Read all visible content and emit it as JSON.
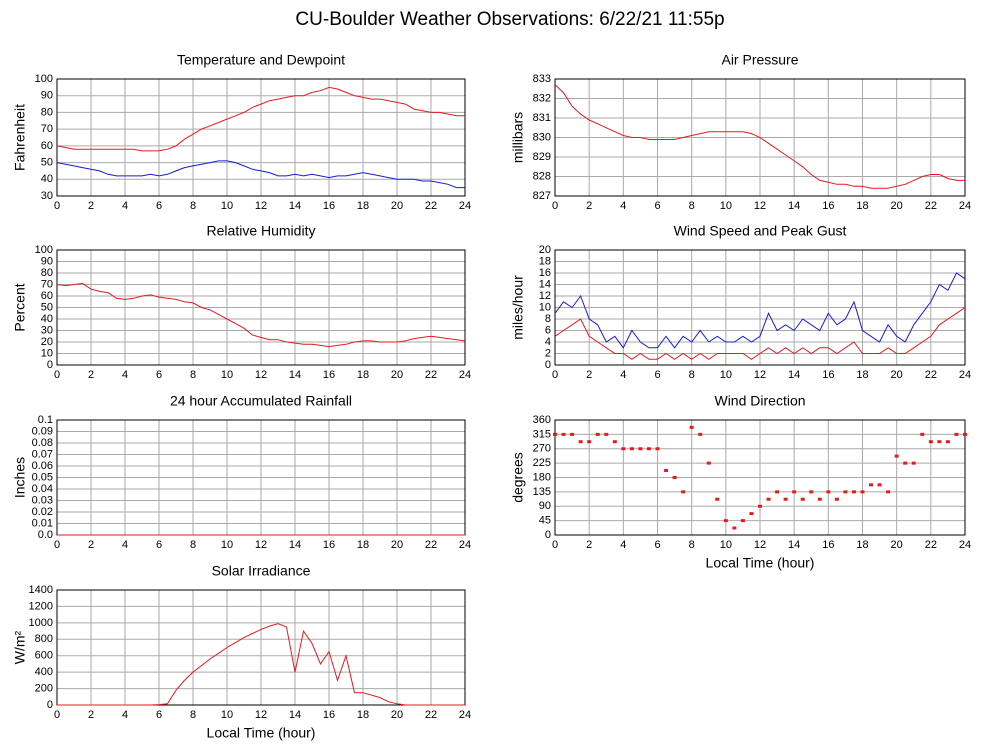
{
  "title": "CU-Boulder Weather Observations: 6/22/21 11:55p",
  "chart_data": [
    {
      "type": "line",
      "title": "Temperature and Dewpoint",
      "ylabel": "Fahrenheit",
      "x": [
        0,
        0.5,
        1,
        1.5,
        2,
        2.5,
        3,
        3.5,
        4,
        4.5,
        5,
        5.5,
        6,
        6.5,
        7,
        7.5,
        8,
        8.5,
        9,
        9.5,
        10,
        10.5,
        11,
        11.5,
        12,
        12.5,
        13,
        13.5,
        14,
        14.5,
        15,
        15.5,
        16,
        16.5,
        17,
        17.5,
        18,
        18.5,
        19,
        19.5,
        20,
        20.5,
        21,
        21.5,
        22,
        22.5,
        23,
        23.5,
        24
      ],
      "series": [
        {
          "color": "#e8191c",
          "values": [
            60,
            59,
            58,
            58,
            58,
            58,
            58,
            58,
            58,
            58,
            57,
            57,
            57,
            58,
            60,
            64,
            67,
            70,
            72,
            74,
            76,
            78,
            80,
            83,
            85,
            87,
            88,
            89,
            90,
            90,
            92,
            93,
            95,
            94,
            92,
            90,
            89,
            88,
            88,
            87,
            86,
            85,
            82,
            81,
            80,
            80,
            79,
            78,
            78
          ]
        },
        {
          "color": "#1a1adc",
          "values": [
            50,
            49,
            48,
            47,
            46,
            45,
            43,
            42,
            42,
            42,
            42,
            43,
            42,
            43,
            45,
            47,
            48,
            49,
            50,
            51,
            51,
            50,
            48,
            46,
            45,
            44,
            42,
            42,
            43,
            42,
            43,
            42,
            41,
            42,
            42,
            43,
            44,
            43,
            42,
            41,
            40,
            40,
            40,
            39,
            39,
            38,
            37,
            35,
            35
          ]
        }
      ],
      "xlim": [
        0,
        24
      ],
      "xticks": [
        0,
        2,
        4,
        6,
        8,
        10,
        12,
        14,
        16,
        18,
        20,
        22,
        24
      ],
      "ylim": [
        30,
        100
      ],
      "yticks": [
        30,
        40,
        50,
        60,
        70,
        80,
        90,
        100
      ],
      "grid": true
    },
    {
      "type": "line",
      "title": "Air Pressure",
      "ylabel": "millibars",
      "x": [
        0,
        0.5,
        1,
        1.5,
        2,
        2.5,
        3,
        3.5,
        4,
        4.5,
        5,
        5.5,
        6,
        6.5,
        7,
        7.5,
        8,
        8.5,
        9,
        9.5,
        10,
        10.5,
        11,
        11.5,
        12,
        12.5,
        13,
        13.5,
        14,
        14.5,
        15,
        15.5,
        16,
        16.5,
        17,
        17.5,
        18,
        18.5,
        19,
        19.5,
        20,
        20.5,
        21,
        21.5,
        22,
        22.5,
        23,
        23.5,
        24
      ],
      "series": [
        {
          "color": "#e8191c",
          "values": [
            832.7,
            832.3,
            831.6,
            831.2,
            830.9,
            830.7,
            830.5,
            830.3,
            830.1,
            830.0,
            830.0,
            829.9,
            829.9,
            829.9,
            829.9,
            830.0,
            830.1,
            830.2,
            830.3,
            830.3,
            830.3,
            830.3,
            830.3,
            830.2,
            830.0,
            829.7,
            829.4,
            829.1,
            828.8,
            828.5,
            828.1,
            827.8,
            827.7,
            827.6,
            827.6,
            827.5,
            827.5,
            827.4,
            827.4,
            827.4,
            827.5,
            827.6,
            827.8,
            828.0,
            828.1,
            828.1,
            827.9,
            827.8,
            827.8
          ]
        }
      ],
      "xlim": [
        0,
        24
      ],
      "xticks": [
        0,
        2,
        4,
        6,
        8,
        10,
        12,
        14,
        16,
        18,
        20,
        22,
        24
      ],
      "ylim": [
        827,
        833
      ],
      "yticks": [
        827,
        828,
        829,
        830,
        831,
        832,
        833
      ],
      "grid": true
    },
    {
      "type": "line",
      "title": "Relative Humidity",
      "ylabel": "Percent",
      "x": [
        0,
        0.5,
        1,
        1.5,
        2,
        2.5,
        3,
        3.5,
        4,
        4.5,
        5,
        5.5,
        6,
        6.5,
        7,
        7.5,
        8,
        8.5,
        9,
        9.5,
        10,
        10.5,
        11,
        11.5,
        12,
        12.5,
        13,
        13.5,
        14,
        14.5,
        15,
        15.5,
        16,
        16.5,
        17,
        17.5,
        18,
        18.5,
        19,
        19.5,
        20,
        20.5,
        21,
        21.5,
        22,
        22.5,
        23,
        23.5,
        24
      ],
      "series": [
        {
          "color": "#e8191c",
          "values": [
            70,
            69,
            70,
            71,
            66,
            64,
            63,
            58,
            57,
            58,
            60,
            61,
            59,
            58,
            57,
            55,
            54,
            50,
            48,
            44,
            40,
            36,
            32,
            26,
            24,
            22,
            22,
            20,
            19,
            18,
            18,
            17,
            16,
            17,
            18,
            20,
            21,
            21,
            20,
            20,
            20,
            21,
            23,
            24,
            25,
            24,
            23,
            22,
            21
          ]
        }
      ],
      "xlim": [
        0,
        24
      ],
      "xticks": [
        0,
        2,
        4,
        6,
        8,
        10,
        12,
        14,
        16,
        18,
        20,
        22,
        24
      ],
      "ylim": [
        0,
        100
      ],
      "yticks": [
        0,
        10,
        20,
        30,
        40,
        50,
        60,
        70,
        80,
        90,
        100
      ],
      "grid": true
    },
    {
      "type": "line",
      "title": "Wind Speed and Peak Gust",
      "ylabel": "miles/hour",
      "x": [
        0,
        0.5,
        1,
        1.5,
        2,
        2.5,
        3,
        3.5,
        4,
        4.5,
        5,
        5.5,
        6,
        6.5,
        7,
        7.5,
        8,
        8.5,
        9,
        9.5,
        10,
        10.5,
        11,
        11.5,
        12,
        12.5,
        13,
        13.5,
        14,
        14.5,
        15,
        15.5,
        16,
        16.5,
        17,
        17.5,
        18,
        18.5,
        19,
        19.5,
        20,
        20.5,
        21,
        21.5,
        22,
        22.5,
        23,
        23.5,
        24
      ],
      "series": [
        {
          "color": "#e8191c",
          "values": [
            5,
            6,
            7,
            8,
            5,
            4,
            3,
            2,
            2,
            1,
            2,
            1,
            1,
            2,
            1,
            2,
            1,
            2,
            1,
            2,
            2,
            2,
            2,
            1,
            2,
            3,
            2,
            3,
            2,
            3,
            2,
            3,
            3,
            2,
            3,
            4,
            2,
            2,
            2,
            3,
            2,
            2,
            3,
            4,
            5,
            7,
            8,
            9,
            10
          ]
        },
        {
          "color": "#1a1adc",
          "values": [
            9,
            11,
            10,
            12,
            8,
            7,
            4,
            5,
            3,
            6,
            4,
            3,
            3,
            5,
            3,
            5,
            4,
            6,
            4,
            5,
            4,
            4,
            5,
            4,
            5,
            9,
            6,
            7,
            6,
            8,
            7,
            6,
            9,
            7,
            8,
            11,
            6,
            5,
            4,
            7,
            5,
            4,
            7,
            9,
            11,
            14,
            13,
            16,
            15
          ]
        }
      ],
      "xlim": [
        0,
        24
      ],
      "xticks": [
        0,
        2,
        4,
        6,
        8,
        10,
        12,
        14,
        16,
        18,
        20,
        22,
        24
      ],
      "ylim": [
        0,
        20
      ],
      "yticks": [
        0,
        2,
        4,
        6,
        8,
        10,
        12,
        14,
        16,
        18,
        20
      ],
      "grid": true
    },
    {
      "type": "line",
      "title": "24 hour Accumulated Rainfall",
      "ylabel": "Inches",
      "x": [
        0,
        24
      ],
      "series": [
        {
          "color": "#e8191c",
          "values": [
            0,
            0
          ]
        }
      ],
      "xlim": [
        0,
        24
      ],
      "xticks": [
        0,
        2,
        4,
        6,
        8,
        10,
        12,
        14,
        16,
        18,
        20,
        22,
        24
      ],
      "ylim": [
        0,
        0.1
      ],
      "yticks": [
        {
          "value": 0,
          "label": "0.0"
        },
        0.01,
        0.02,
        0.03,
        0.04,
        0.05,
        0.06,
        0.07,
        0.08,
        0.09,
        0.1
      ],
      "grid": true
    },
    {
      "type": "scatter",
      "title": "Wind Direction",
      "ylabel": "degrees",
      "xlabel": "Local Time (hour)",
      "x": [
        0,
        0.5,
        1,
        1.5,
        2,
        2.5,
        3,
        3.5,
        4,
        4.5,
        5,
        5.5,
        6,
        6.5,
        7,
        7.5,
        8,
        8.5,
        9,
        9.5,
        10,
        10.5,
        11,
        11.5,
        12,
        12.5,
        13,
        13.5,
        14,
        14.5,
        15,
        15.5,
        16,
        16.5,
        17,
        17.5,
        18,
        18.5,
        19,
        19.5,
        20,
        20.5,
        21,
        21.5,
        22,
        22.5,
        23,
        23.5,
        24
      ],
      "series": [
        {
          "color": "#e8191c",
          "values": [
            315,
            315,
            315,
            292,
            292,
            315,
            315,
            292,
            270,
            270,
            270,
            270,
            270,
            202,
            180,
            135,
            337,
            315,
            225,
            112,
            45,
            22,
            45,
            67,
            90,
            112,
            135,
            112,
            135,
            112,
            135,
            112,
            135,
            112,
            135,
            135,
            135,
            157,
            157,
            135,
            247,
            225,
            225,
            315,
            292,
            292,
            292,
            315,
            315
          ]
        }
      ],
      "xlim": [
        0,
        24
      ],
      "xticks": [
        0,
        2,
        4,
        6,
        8,
        10,
        12,
        14,
        16,
        18,
        20,
        22,
        24
      ],
      "ylim": [
        0,
        360
      ],
      "yticks": [
        0,
        45,
        90,
        135,
        180,
        225,
        270,
        315,
        360
      ],
      "grid": true
    },
    {
      "type": "line",
      "title": "Solar Irradiance",
      "ylabel": "W/m²",
      "xlabel": "Local Time (hour)",
      "x": [
        0,
        0.5,
        1,
        1.5,
        2,
        2.5,
        3,
        3.5,
        4,
        4.5,
        5,
        5.5,
        6,
        6.5,
        7,
        7.5,
        8,
        8.5,
        9,
        9.5,
        10,
        10.5,
        11,
        11.5,
        12,
        12.5,
        13,
        13.5,
        14,
        14.5,
        15,
        15.5,
        16,
        16.5,
        17,
        17.5,
        18,
        18.5,
        19,
        19.5,
        20,
        20.5,
        21,
        21.5,
        22,
        22.5,
        23,
        23.5,
        24
      ],
      "series": [
        {
          "color": "#e8191c",
          "values": [
            0,
            0,
            0,
            0,
            0,
            0,
            0,
            0,
            0,
            0,
            0,
            0,
            5,
            15,
            180,
            300,
            400,
            480,
            560,
            630,
            700,
            760,
            820,
            870,
            920,
            960,
            990,
            950,
            400,
            900,
            750,
            500,
            650,
            300,
            600,
            150,
            150,
            120,
            90,
            40,
            15,
            0,
            0,
            0,
            0,
            0,
            0,
            0,
            0
          ]
        }
      ],
      "xlim": [
        0,
        24
      ],
      "xticks": [
        0,
        2,
        4,
        6,
        8,
        10,
        12,
        14,
        16,
        18,
        20,
        22,
        24
      ],
      "ylim": [
        0,
        1400
      ],
      "yticks": [
        0,
        200,
        400,
        600,
        800,
        1000,
        1200,
        1400
      ],
      "grid": true
    }
  ]
}
